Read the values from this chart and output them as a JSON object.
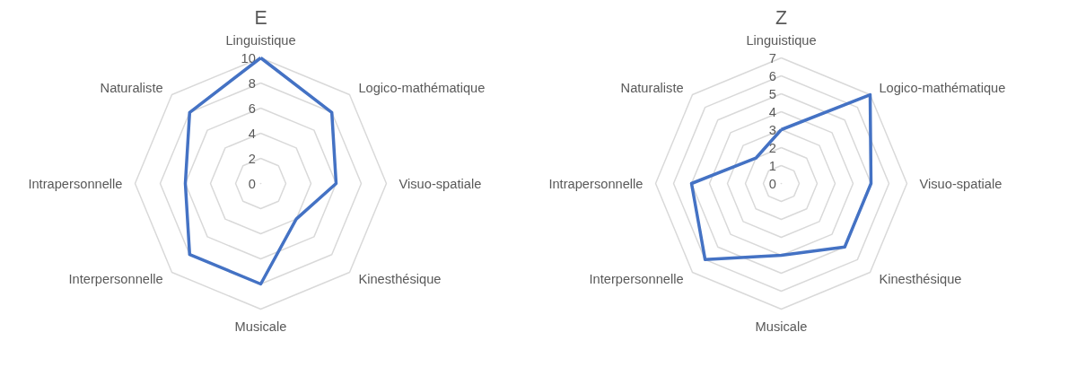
{
  "chart_data": [
    {
      "type": "radar",
      "title": "E",
      "categories": [
        "Linguistique",
        "Logico-mathématique",
        "Visuo-spatiale",
        "Kinesthésique",
        "Musicale",
        "Interpersonnelle",
        "Intrapersonnelle",
        "Naturaliste"
      ],
      "series": [
        {
          "color": "#4472c4",
          "values": [
            10,
            8,
            6,
            4,
            8,
            8,
            6,
            8
          ]
        }
      ],
      "ylim": [
        0,
        10
      ],
      "yticks": [
        0,
        2,
        4,
        6,
        8,
        10
      ],
      "grid": true
    },
    {
      "type": "radar",
      "title": "Z",
      "categories": [
        "Linguistique",
        "Logico-mathématique",
        "Visuo-spatiale",
        "Kinesthésique",
        "Musicale",
        "Interpersonnelle",
        "Intrapersonnelle",
        "Naturaliste"
      ],
      "series": [
        {
          "color": "#4472c4",
          "values": [
            3,
            7,
            5,
            5,
            4,
            6,
            5,
            2
          ]
        }
      ],
      "ylim": [
        0,
        7
      ],
      "yticks": [
        0,
        1,
        2,
        3,
        4,
        5,
        6,
        7
      ],
      "grid": true
    }
  ]
}
